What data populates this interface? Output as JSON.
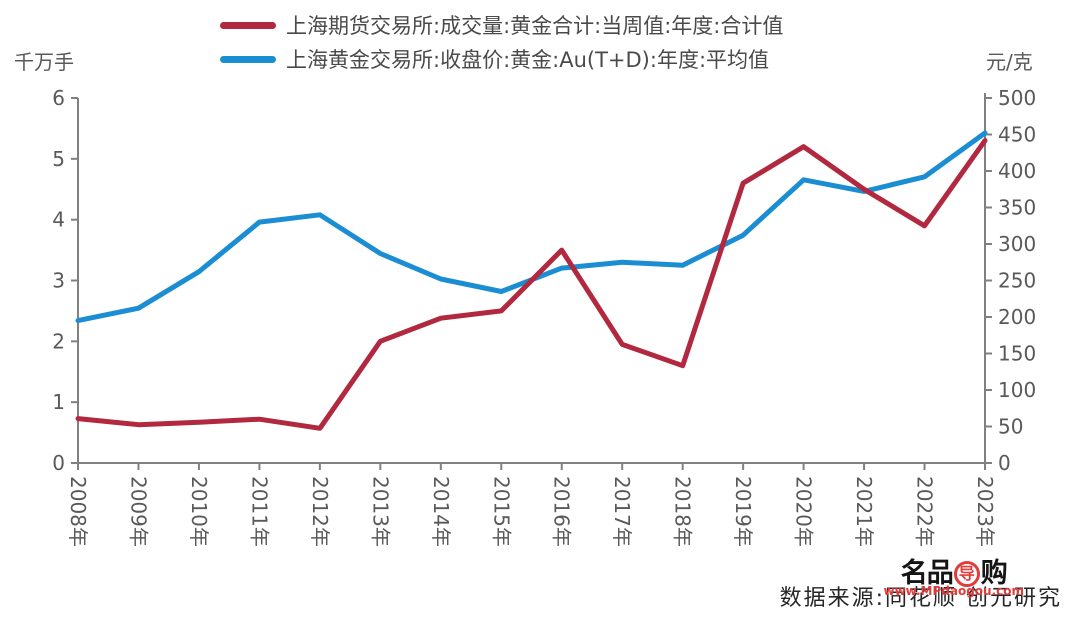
{
  "legend": {
    "items": [
      {
        "label": "上海期货交易所:成交量:黄金合计:当周值:年度:合计值",
        "color": "#b1283f"
      },
      {
        "label": "上海黄金交易所:收盘价:黄金:Au(T+D):年度:平均值",
        "color": "#1b8dd3"
      }
    ]
  },
  "axes": {
    "left_unit": "千万手",
    "right_unit": "元/克"
  },
  "source_text": "数据来源:同花顺 创元研究",
  "watermark": {
    "prefix": "名品",
    "circled": "导",
    "suffix": "购",
    "url": "www.MPdaogou.com"
  },
  "colors": {
    "series_volume": "#b1283f",
    "series_price": "#1b8dd3",
    "axis_line": "#808080",
    "tick_text": "#595959"
  },
  "chart_data": {
    "type": "line",
    "title": "",
    "categories": [
      "2008年",
      "2009年",
      "2010年",
      "2011年",
      "2012年",
      "2013年",
      "2014年",
      "2015年",
      "2016年",
      "2017年",
      "2018年",
      "2019年",
      "2020年",
      "2021年",
      "2022年",
      "2023年"
    ],
    "series": [
      {
        "name": "上海期货交易所:成交量:黄金合计:当周值:年度:合计值",
        "axis": "left",
        "color": "#b1283f",
        "values": [
          0.73,
          0.63,
          0.67,
          0.72,
          0.57,
          2.0,
          2.38,
          2.5,
          3.5,
          1.95,
          1.6,
          4.6,
          5.2,
          4.5,
          3.9,
          5.3
        ]
      },
      {
        "name": "上海黄金交易所:收盘价:黄金:Au(T+D):年度:平均值",
        "axis": "right",
        "color": "#1b8dd3",
        "values": [
          195,
          212,
          262,
          330,
          340,
          287,
          252,
          235,
          267,
          275,
          271,
          312,
          388,
          372,
          392,
          452
        ]
      }
    ],
    "left_axis": {
      "unit": "千万手",
      "min": 0,
      "max": 6,
      "tick_step": 1,
      "ticks": [
        0,
        1,
        2,
        3,
        4,
        5,
        6
      ]
    },
    "right_axis": {
      "unit": "元/克",
      "min": 0,
      "max": 500,
      "tick_step": 50,
      "ticks": [
        0,
        50,
        100,
        150,
        200,
        250,
        300,
        350,
        400,
        450,
        500
      ]
    },
    "x_tick_rotation": 90,
    "grid": false,
    "legend_position": "top-center"
  }
}
